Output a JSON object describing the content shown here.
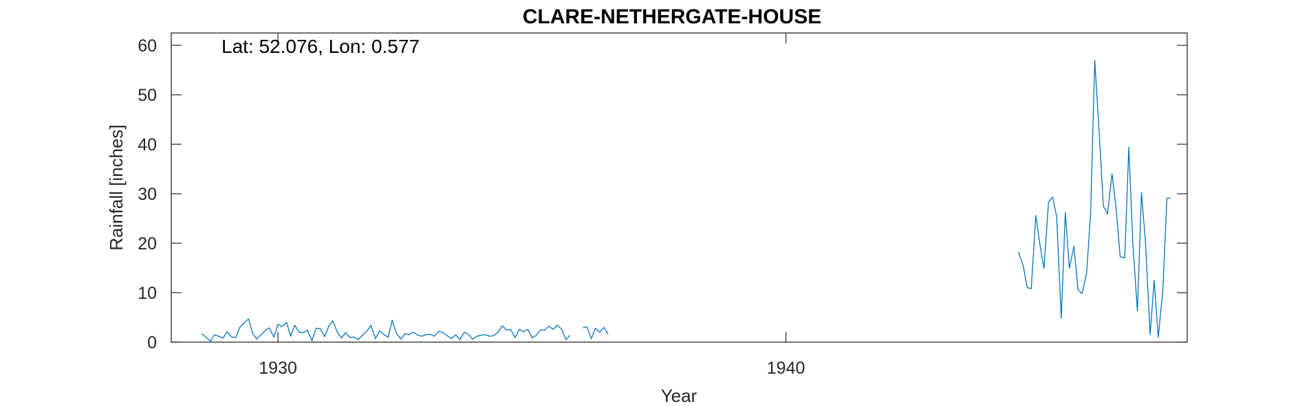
{
  "chart_data": {
    "type": "line",
    "title": "CLARE-NETHERGATE-HOUSE",
    "annotation": "Lat: 52.076, Lon: 0.577",
    "xlabel": "Year",
    "ylabel": "Rainfall [inches]",
    "xlim": [
      1927.9,
      1947.9
    ],
    "ylim": [
      0,
      62.5
    ],
    "xticks": [
      1930,
      1940
    ],
    "xtick_labels": [
      "1930",
      "1940"
    ],
    "yticks": [
      0,
      10,
      20,
      30,
      40,
      50,
      60
    ],
    "ytick_labels": [
      "0",
      "10",
      "20",
      "30",
      "40",
      "50",
      "60"
    ],
    "grid": false,
    "line_color": "#0072BD",
    "series": [
      {
        "segments": [
          {
            "x": [
              1928.5,
              1928.58,
              1928.67,
              1928.75,
              1928.83,
              1928.92,
              1929.0,
              1929.08,
              1929.17,
              1929.25,
              1929.33,
              1929.42,
              1929.5,
              1929.58,
              1929.67,
              1929.75,
              1929.83,
              1929.92,
              1930.0,
              1930.08,
              1930.17,
              1930.25,
              1930.33,
              1930.42,
              1930.5,
              1930.58,
              1930.67,
              1930.75,
              1930.83,
              1930.92,
              1931.0,
              1931.08,
              1931.17,
              1931.25,
              1931.33,
              1931.42,
              1931.5,
              1931.58,
              1931.67,
              1931.75,
              1931.83,
              1931.92,
              1932.0,
              1932.08,
              1932.17,
              1932.25,
              1932.33,
              1932.42,
              1932.5,
              1932.58,
              1932.67,
              1932.75,
              1932.83,
              1932.92,
              1933.0,
              1933.08,
              1933.17,
              1933.25,
              1933.33,
              1933.42,
              1933.5,
              1933.58,
              1933.67,
              1933.75,
              1933.83,
              1933.92,
              1934.0,
              1934.08,
              1934.17,
              1934.25,
              1934.33,
              1934.42,
              1934.5,
              1934.58,
              1934.67,
              1934.75,
              1934.83,
              1934.92,
              1935.0,
              1935.08,
              1935.17,
              1935.25,
              1935.33,
              1935.42,
              1935.5,
              1935.58,
              1935.67,
              1935.75
            ],
            "y": [
              1.7,
              1.0,
              0.2,
              1.5,
              1.2,
              0.8,
              2.1,
              1.1,
              0.9,
              3.0,
              3.8,
              4.7,
              1.8,
              0.6,
              1.5,
              2.3,
              2.9,
              1.0,
              3.6,
              3.1,
              4.0,
              1.2,
              3.4,
              2.0,
              1.9,
              2.4,
              0.3,
              2.8,
              2.7,
              1.1,
              3.2,
              4.3,
              2.0,
              0.8,
              1.9,
              0.9,
              1.0,
              0.5,
              1.4,
              2.2,
              3.4,
              0.7,
              2.3,
              1.6,
              1.0,
              4.4,
              1.8,
              0.6,
              1.7,
              1.5,
              2.0,
              1.4,
              1.2,
              1.5,
              1.6,
              1.2,
              2.2,
              1.9,
              1.3,
              0.7,
              1.5,
              0.5,
              2.0,
              1.6,
              0.6,
              1.2,
              1.4,
              1.5,
              1.2,
              1.3,
              2.0,
              3.3,
              2.4,
              2.6,
              0.9,
              2.6,
              2.1,
              2.6,
              0.9,
              1.3,
              2.5,
              2.4,
              3.2,
              2.6,
              3.4,
              2.7,
              0.5,
              1.4
            ]
          },
          {
            "x": [
              1936.0,
              1936.08,
              1936.17,
              1936.25,
              1936.33,
              1936.42
            ],
            "y": [
              2.9,
              3.1,
              0.7,
              2.8,
              2.0,
              3.0
            ]
          },
          {
            "x": [
              1936.42,
              1936.5
            ],
            "y": [
              3.0,
              1.6
            ]
          },
          {
            "x": [
              1944.58,
              1944.67,
              1944.75,
              1944.83,
              1944.92,
              1945.0,
              1945.08,
              1945.17,
              1945.25,
              1945.33,
              1945.42,
              1945.5,
              1945.58,
              1945.67,
              1945.75,
              1945.83,
              1945.92,
              1946.0,
              1946.08,
              1946.17,
              1946.25,
              1946.33,
              1946.42,
              1946.5,
              1946.58,
              1946.67,
              1946.75,
              1946.83,
              1946.92,
              1947.0,
              1947.08,
              1947.17,
              1947.25,
              1947.33,
              1947.42,
              1947.5,
              1947.58
            ],
            "y": [
              18.2,
              15.5,
              11.0,
              10.8,
              25.6,
              19.8,
              14.9,
              28.3,
              29.3,
              25.4,
              4.8,
              26.2,
              14.9,
              19.4,
              10.6,
              9.8,
              14.0,
              26.3,
              57.0,
              42.0,
              27.5,
              25.9,
              34.0,
              27.1,
              17.3,
              17.0,
              39.4,
              20.0,
              6.3,
              30.2,
              20.1,
              1.5,
              12.5,
              1.0,
              10.5,
              29.1,
              29.1
            ]
          }
        ]
      }
    ]
  }
}
